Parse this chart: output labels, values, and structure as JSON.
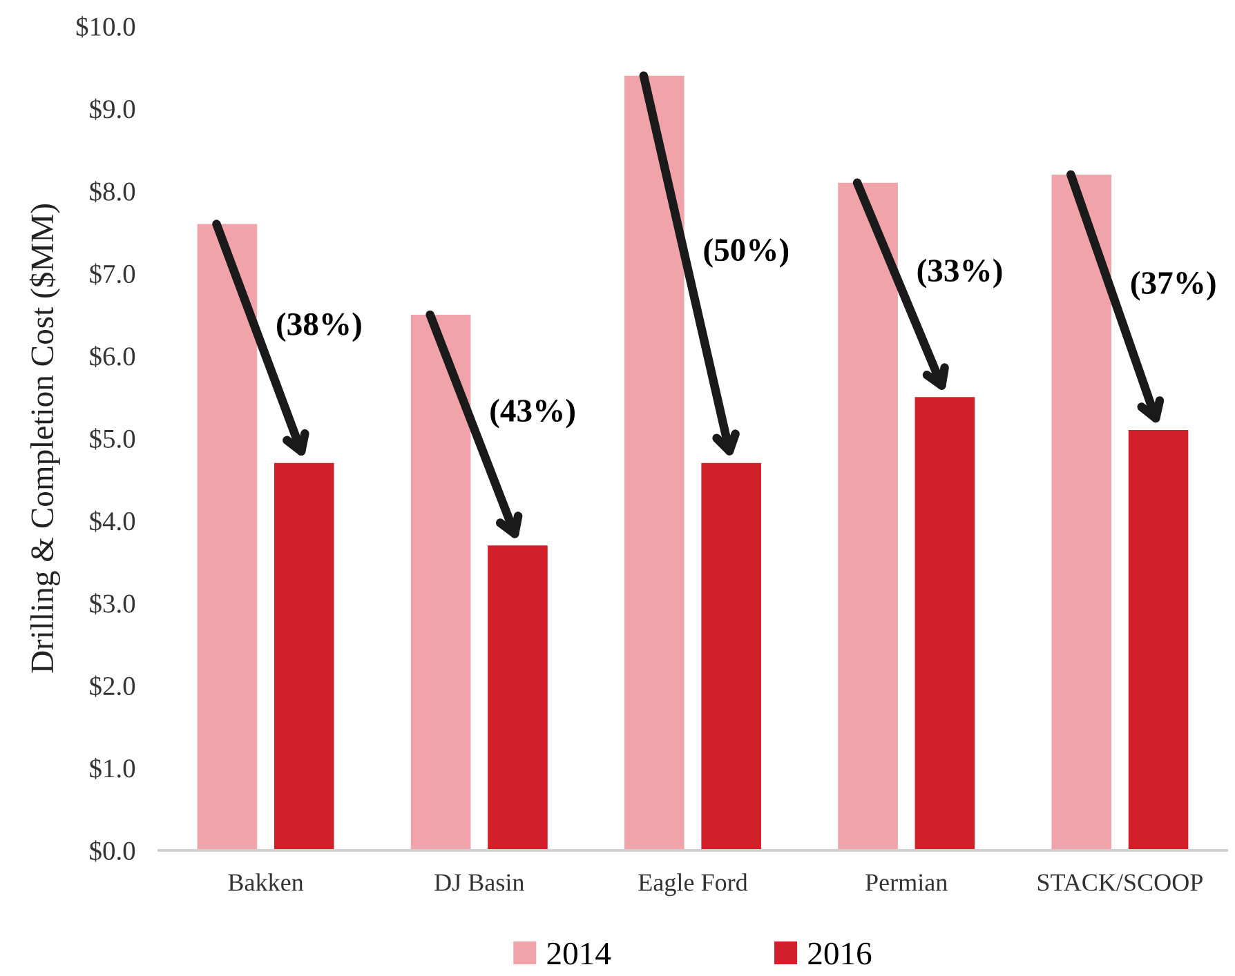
{
  "chart_data": {
    "type": "bar",
    "ylabel": "Drilling & Completion Cost ($MM)",
    "categories": [
      "Bakken",
      "DJ Basin",
      "Eagle Ford",
      "Permian",
      "STACK/SCOOP"
    ],
    "series": [
      {
        "name": "2014",
        "color": "#f0a3a8",
        "values": [
          7.6,
          6.5,
          9.4,
          8.1,
          8.2
        ]
      },
      {
        "name": "2016",
        "color": "#d2202b",
        "values": [
          4.7,
          3.7,
          4.7,
          5.5,
          5.1
        ]
      }
    ],
    "ylim": [
      0,
      10
    ],
    "yticks": [
      {
        "value": 0,
        "label": "$0.0"
      },
      {
        "value": 1,
        "label": "$1.0"
      },
      {
        "value": 2,
        "label": "$2.0"
      },
      {
        "value": 3,
        "label": "$3.0"
      },
      {
        "value": 4,
        "label": "$4.0"
      },
      {
        "value": 5,
        "label": "$5.0"
      },
      {
        "value": 6,
        "label": "$6.0"
      },
      {
        "value": 7,
        "label": "$7.0"
      },
      {
        "value": 8,
        "label": "$8.0"
      },
      {
        "value": 9,
        "label": "$9.0"
      },
      {
        "value": 10,
        "label": "$10.0"
      }
    ],
    "annotations": [
      "(38%)",
      "(43%)",
      "(50%)",
      "(33%)",
      "(37%)"
    ],
    "grid": false,
    "legend": "bottom"
  }
}
